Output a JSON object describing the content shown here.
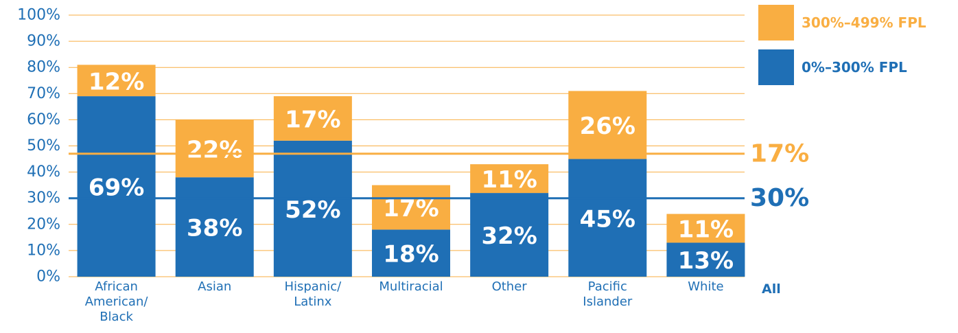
{
  "chart_data": {
    "type": "bar",
    "stacked": true,
    "categories": [
      "African American/ Black",
      "Asian",
      "Hispanic/ Latinx",
      "Multiracial",
      "Other",
      "Pacific Islander",
      "White"
    ],
    "series": [
      {
        "name": "0%–300% FPL",
        "color": "#1f6fb5",
        "values": [
          69,
          38,
          52,
          18,
          32,
          45,
          13
        ],
        "value_labels": [
          "69%",
          "38%",
          "52%",
          "18%",
          "32%",
          "45%",
          "13%"
        ]
      },
      {
        "name": "300%–499% FPL",
        "color": "#f9ae42",
        "values": [
          12,
          22,
          17,
          17,
          11,
          26,
          11
        ],
        "value_labels": [
          "12%",
          "22%",
          "17%",
          "17%",
          "11%",
          "26%",
          "11%"
        ]
      }
    ],
    "total": {
      "label": "All",
      "values": [
        30,
        17
      ],
      "value_labels": [
        "30%",
        "17%"
      ]
    },
    "ylim": [
      0,
      100
    ],
    "yticks": [
      {
        "value": 0,
        "label": "0%"
      },
      {
        "value": 10,
        "label": "10%"
      },
      {
        "value": 20,
        "label": "20%"
      },
      {
        "value": 30,
        "label": "30%"
      },
      {
        "value": 40,
        "label": "40%"
      },
      {
        "value": 50,
        "label": "50%"
      },
      {
        "value": 60,
        "label": "60%"
      },
      {
        "value": 70,
        "label": "70%"
      },
      {
        "value": 80,
        "label": "80%"
      },
      {
        "value": 90,
        "label": "90%"
      },
      {
        "value": 100,
        "label": "100%"
      }
    ],
    "grid": true,
    "grid_color": "#f9ae42",
    "legend": "top-right"
  }
}
